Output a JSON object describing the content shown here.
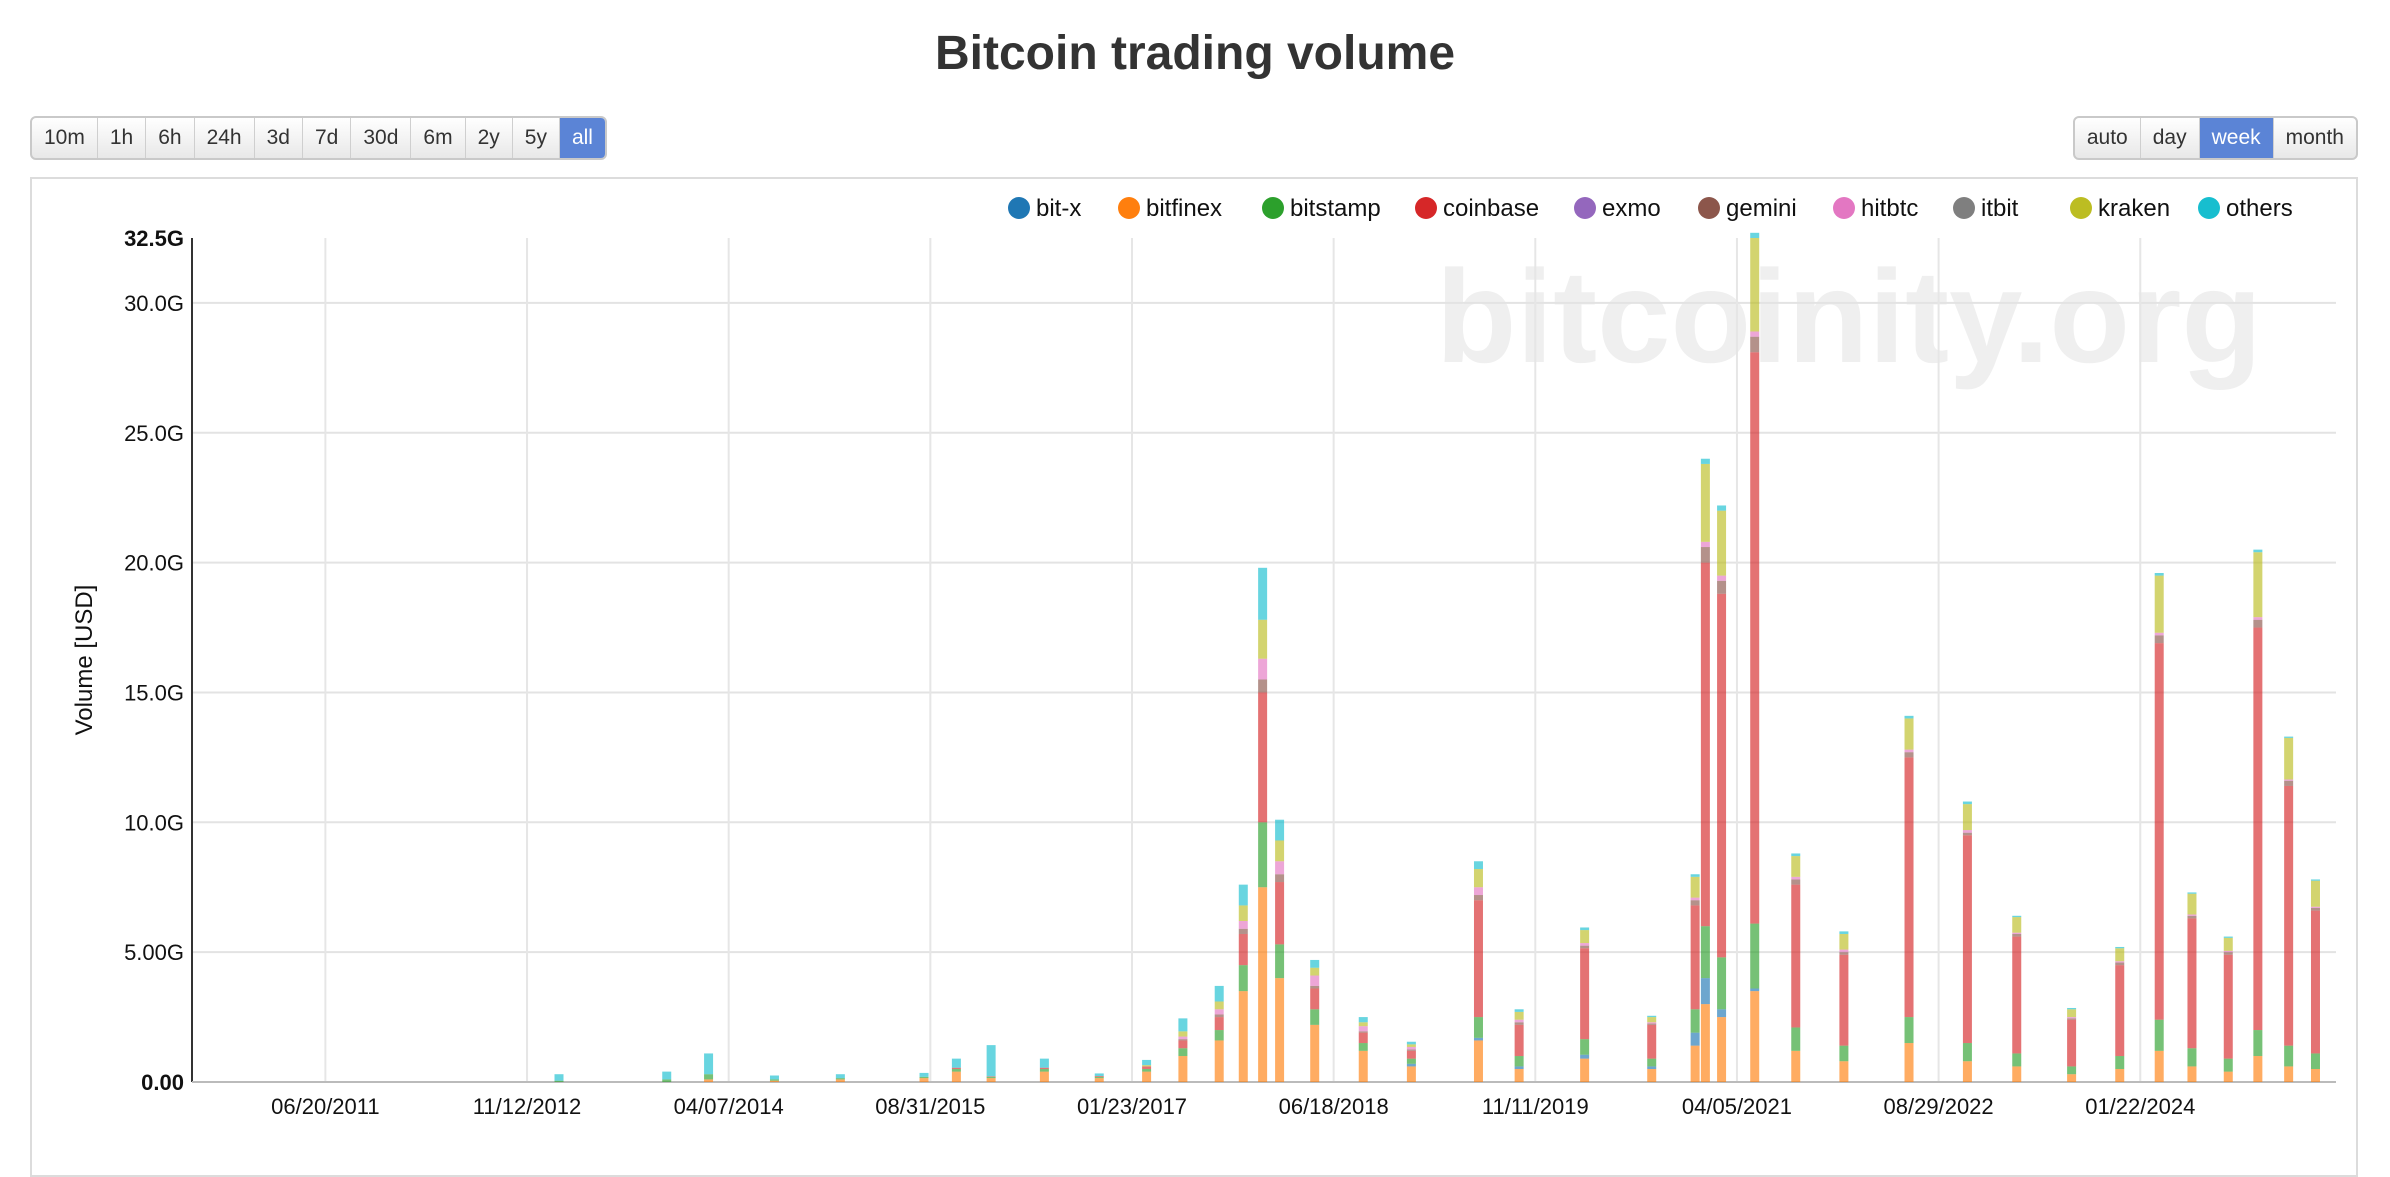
{
  "page": {
    "title": "Bitcoin trading volume"
  },
  "range_buttons": [
    "10m",
    "1h",
    "6h",
    "24h",
    "3d",
    "7d",
    "30d",
    "6m",
    "2y",
    "5y",
    "all"
  ],
  "active_range": "all",
  "resolution_buttons": [
    "auto",
    "day",
    "week",
    "month"
  ],
  "active_resolution": "week",
  "watermark": "bitcoinity.org",
  "chart_data": {
    "type": "stacked-bar",
    "title": "Bitcoin trading volume",
    "ylabel": "Volume [USD]",
    "xlabel": "",
    "ylim": [
      0,
      32.5
    ],
    "y_unit": "G (billions USD)",
    "y_ticks": [
      {
        "value": 0,
        "label": "0.00"
      },
      {
        "value": 5,
        "label": "5.00G"
      },
      {
        "value": 10,
        "label": "10.0G"
      },
      {
        "value": 15,
        "label": "15.0G"
      },
      {
        "value": 20,
        "label": "20.0G"
      },
      {
        "value": 25,
        "label": "25.0G"
      },
      {
        "value": 30,
        "label": "30.0G"
      },
      {
        "value": 32.5,
        "label": "32.5G"
      }
    ],
    "x_ticks": [
      "06/20/2011",
      "11/12/2012",
      "04/07/2014",
      "08/31/2015",
      "01/23/2017",
      "06/18/2018",
      "11/11/2019",
      "04/05/2021",
      "08/29/2022",
      "01/22/2024"
    ],
    "x_range": [
      "2010-07-17",
      "2025-06-01"
    ],
    "legend": [
      {
        "name": "bit-x",
        "color": "#1f77b4"
      },
      {
        "name": "bitfinex",
        "color": "#ff7f0e"
      },
      {
        "name": "bitstamp",
        "color": "#2ca02c"
      },
      {
        "name": "coinbase",
        "color": "#d62728"
      },
      {
        "name": "exmo",
        "color": "#9467bd"
      },
      {
        "name": "gemini",
        "color": "#8c564b"
      },
      {
        "name": "hitbtc",
        "color": "#e377c2"
      },
      {
        "name": "itbit",
        "color": "#7f7f7f"
      },
      {
        "name": "kraken",
        "color": "#bcbd22"
      },
      {
        "name": "others",
        "color": "#17becf"
      }
    ],
    "series_order": [
      "bitfinex",
      "bit-x",
      "bitstamp",
      "coinbase",
      "gemini",
      "hitbtc",
      "kraken",
      "others"
    ],
    "points": [
      {
        "date": "2013-02-01",
        "bitfinex": 0.0,
        "bit-x": 0,
        "bitstamp": 0.05,
        "coinbase": 0,
        "gemini": 0,
        "hitbtc": 0,
        "kraken": 0,
        "others": 0.25
      },
      {
        "date": "2013-11-01",
        "bitfinex": 0.0,
        "bit-x": 0,
        "bitstamp": 0.1,
        "coinbase": 0,
        "gemini": 0,
        "hitbtc": 0,
        "kraken": 0,
        "others": 0.3
      },
      {
        "date": "2014-02-15",
        "bitfinex": 0.1,
        "bit-x": 0,
        "bitstamp": 0.2,
        "coinbase": 0,
        "gemini": 0,
        "hitbtc": 0,
        "kraken": 0,
        "others": 0.8
      },
      {
        "date": "2014-08-01",
        "bitfinex": 0.05,
        "bit-x": 0,
        "bitstamp": 0.05,
        "coinbase": 0,
        "gemini": 0,
        "hitbtc": 0,
        "kraken": 0,
        "others": 0.15
      },
      {
        "date": "2015-01-15",
        "bitfinex": 0.1,
        "bit-x": 0,
        "bitstamp": 0.05,
        "coinbase": 0,
        "gemini": 0,
        "hitbtc": 0,
        "kraken": 0,
        "others": 0.15
      },
      {
        "date": "2015-08-15",
        "bitfinex": 0.15,
        "bit-x": 0,
        "bitstamp": 0.05,
        "coinbase": 0,
        "gemini": 0,
        "hitbtc": 0,
        "kraken": 0,
        "others": 0.15
      },
      {
        "date": "2015-11-05",
        "bitfinex": 0.4,
        "bit-x": 0,
        "bitstamp": 0.1,
        "coinbase": 0.05,
        "gemini": 0,
        "hitbtc": 0,
        "kraken": 0,
        "others": 0.35
      },
      {
        "date": "2016-02-01",
        "bitfinex": 0.15,
        "bit-x": 0,
        "bitstamp": 0.05,
        "coinbase": 0.02,
        "gemini": 0,
        "hitbtc": 0,
        "kraken": 0,
        "others": 1.2
      },
      {
        "date": "2016-06-15",
        "bitfinex": 0.4,
        "bit-x": 0,
        "bitstamp": 0.1,
        "coinbase": 0.05,
        "gemini": 0,
        "hitbtc": 0,
        "kraken": 0,
        "others": 0.35
      },
      {
        "date": "2016-11-01",
        "bitfinex": 0.15,
        "bit-x": 0,
        "bitstamp": 0.05,
        "coinbase": 0.03,
        "gemini": 0,
        "hitbtc": 0,
        "kraken": 0,
        "others": 0.1
      },
      {
        "date": "2017-03-01",
        "bitfinex": 0.4,
        "bit-x": 0,
        "bitstamp": 0.1,
        "coinbase": 0.1,
        "gemini": 0,
        "hitbtc": 0,
        "kraken": 0.05,
        "others": 0.2
      },
      {
        "date": "2017-06-01",
        "bitfinex": 1.0,
        "bit-x": 0,
        "bitstamp": 0.3,
        "coinbase": 0.3,
        "gemini": 0.05,
        "hitbtc": 0.1,
        "kraken": 0.2,
        "others": 0.5
      },
      {
        "date": "2017-09-01",
        "bitfinex": 1.6,
        "bit-x": 0,
        "bitstamp": 0.4,
        "coinbase": 0.5,
        "gemini": 0.1,
        "hitbtc": 0.2,
        "kraken": 0.3,
        "others": 0.6
      },
      {
        "date": "2017-11-01",
        "bitfinex": 3.5,
        "bit-x": 0,
        "bitstamp": 1.0,
        "coinbase": 1.2,
        "gemini": 0.2,
        "hitbtc": 0.3,
        "kraken": 0.6,
        "others": 0.8
      },
      {
        "date": "2017-12-20",
        "bitfinex": 7.5,
        "bit-x": 0,
        "bitstamp": 2.5,
        "coinbase": 5.0,
        "gemini": 0.5,
        "hitbtc": 0.8,
        "kraken": 1.5,
        "others": 2.0
      },
      {
        "date": "2018-02-01",
        "bitfinex": 4.0,
        "bit-x": 0,
        "bitstamp": 1.3,
        "coinbase": 2.4,
        "gemini": 0.3,
        "hitbtc": 0.5,
        "kraken": 0.8,
        "others": 0.8
      },
      {
        "date": "2018-05-01",
        "bitfinex": 2.2,
        "bit-x": 0,
        "bitstamp": 0.6,
        "coinbase": 0.8,
        "gemini": 0.1,
        "hitbtc": 0.4,
        "kraken": 0.3,
        "others": 0.3
      },
      {
        "date": "2018-09-01",
        "bitfinex": 1.2,
        "bit-x": 0,
        "bitstamp": 0.3,
        "coinbase": 0.4,
        "gemini": 0.05,
        "hitbtc": 0.2,
        "kraken": 0.15,
        "others": 0.2
      },
      {
        "date": "2019-01-01",
        "bitfinex": 0.6,
        "bit-x": 0.1,
        "bitstamp": 0.2,
        "coinbase": 0.3,
        "gemini": 0.05,
        "hitbtc": 0.1,
        "kraken": 0.1,
        "others": 0.1
      },
      {
        "date": "2019-06-20",
        "bitfinex": 1.6,
        "bit-x": 0.1,
        "bitstamp": 0.8,
        "coinbase": 4.5,
        "gemini": 0.2,
        "hitbtc": 0.3,
        "kraken": 0.7,
        "others": 0.3
      },
      {
        "date": "2019-10-01",
        "bitfinex": 0.5,
        "bit-x": 0.1,
        "bitstamp": 0.4,
        "coinbase": 1.2,
        "gemini": 0.1,
        "hitbtc": 0.1,
        "kraken": 0.3,
        "others": 0.1
      },
      {
        "date": "2020-03-15",
        "bitfinex": 0.9,
        "bit-x": 0.15,
        "bitstamp": 0.6,
        "coinbase": 3.5,
        "gemini": 0.1,
        "hitbtc": 0.1,
        "kraken": 0.5,
        "others": 0.1
      },
      {
        "date": "2020-09-01",
        "bitfinex": 0.5,
        "bit-x": 0.1,
        "bitstamp": 0.3,
        "coinbase": 1.3,
        "gemini": 0.05,
        "hitbtc": 0.05,
        "kraken": 0.2,
        "others": 0.05
      },
      {
        "date": "2020-12-20",
        "bitfinex": 1.4,
        "bit-x": 0.5,
        "bitstamp": 0.9,
        "coinbase": 4.0,
        "gemini": 0.2,
        "hitbtc": 0.1,
        "kraken": 0.8,
        "others": 0.1
      },
      {
        "date": "2021-01-15",
        "bitfinex": 3.0,
        "bit-x": 1.0,
        "bitstamp": 2.0,
        "coinbase": 14.0,
        "gemini": 0.6,
        "hitbtc": 0.2,
        "kraken": 3.0,
        "others": 0.2
      },
      {
        "date": "2021-02-25",
        "bitfinex": 2.5,
        "bit-x": 0.3,
        "bitstamp": 2.0,
        "coinbase": 14.0,
        "gemini": 0.5,
        "hitbtc": 0.2,
        "kraken": 2.5,
        "others": 0.2
      },
      {
        "date": "2021-05-20",
        "bitfinex": 3.5,
        "bit-x": 0.1,
        "bitstamp": 2.5,
        "coinbase": 22.0,
        "gemini": 0.6,
        "hitbtc": 0.2,
        "kraken": 3.6,
        "others": 0.2
      },
      {
        "date": "2021-09-01",
        "bitfinex": 1.2,
        "bit-x": 0,
        "bitstamp": 0.9,
        "coinbase": 5.5,
        "gemini": 0.2,
        "hitbtc": 0.1,
        "kraken": 0.8,
        "others": 0.1
      },
      {
        "date": "2022-01-01",
        "bitfinex": 0.8,
        "bit-x": 0,
        "bitstamp": 0.6,
        "coinbase": 3.5,
        "gemini": 0.1,
        "hitbtc": 0.1,
        "kraken": 0.6,
        "others": 0.1
      },
      {
        "date": "2022-06-15",
        "bitfinex": 1.5,
        "bit-x": 0,
        "bitstamp": 1.0,
        "coinbase": 10.0,
        "gemini": 0.2,
        "hitbtc": 0.1,
        "kraken": 1.2,
        "others": 0.1
      },
      {
        "date": "2022-11-10",
        "bitfinex": 0.8,
        "bit-x": 0,
        "bitstamp": 0.7,
        "coinbase": 8.0,
        "gemini": 0.1,
        "hitbtc": 0.1,
        "kraken": 1.0,
        "others": 0.1
      },
      {
        "date": "2023-03-15",
        "bitfinex": 0.6,
        "bit-x": 0,
        "bitstamp": 0.5,
        "coinbase": 4.5,
        "gemini": 0.1,
        "hitbtc": 0.05,
        "kraken": 0.6,
        "others": 0.05
      },
      {
        "date": "2023-08-01",
        "bitfinex": 0.3,
        "bit-x": 0,
        "bitstamp": 0.3,
        "coinbase": 1.8,
        "gemini": 0.05,
        "hitbtc": 0.05,
        "kraken": 0.3,
        "others": 0.05
      },
      {
        "date": "2023-12-01",
        "bitfinex": 0.5,
        "bit-x": 0,
        "bitstamp": 0.5,
        "coinbase": 3.5,
        "gemini": 0.1,
        "hitbtc": 0.05,
        "kraken": 0.5,
        "others": 0.05
      },
      {
        "date": "2024-03-10",
        "bitfinex": 1.2,
        "bit-x": 0,
        "bitstamp": 1.2,
        "coinbase": 14.5,
        "gemini": 0.3,
        "hitbtc": 0.1,
        "kraken": 2.2,
        "others": 0.1
      },
      {
        "date": "2024-06-01",
        "bitfinex": 0.6,
        "bit-x": 0,
        "bitstamp": 0.7,
        "coinbase": 5.0,
        "gemini": 0.1,
        "hitbtc": 0.05,
        "kraken": 0.8,
        "others": 0.05
      },
      {
        "date": "2024-09-01",
        "bitfinex": 0.4,
        "bit-x": 0,
        "bitstamp": 0.5,
        "coinbase": 4.0,
        "gemini": 0.1,
        "hitbtc": 0.05,
        "kraken": 0.5,
        "others": 0.05
      },
      {
        "date": "2024-11-15",
        "bitfinex": 1.0,
        "bit-x": 0,
        "bitstamp": 1.0,
        "coinbase": 15.5,
        "gemini": 0.3,
        "hitbtc": 0.1,
        "kraken": 2.5,
        "others": 0.1
      },
      {
        "date": "2025-02-01",
        "bitfinex": 0.6,
        "bit-x": 0,
        "bitstamp": 0.8,
        "coinbase": 10.0,
        "gemini": 0.2,
        "hitbtc": 0.05,
        "kraken": 1.6,
        "others": 0.05
      },
      {
        "date": "2025-04-10",
        "bitfinex": 0.5,
        "bit-x": 0,
        "bitstamp": 0.6,
        "coinbase": 5.5,
        "gemini": 0.1,
        "hitbtc": 0.05,
        "kraken": 1.0,
        "others": 0.05
      }
    ]
  }
}
